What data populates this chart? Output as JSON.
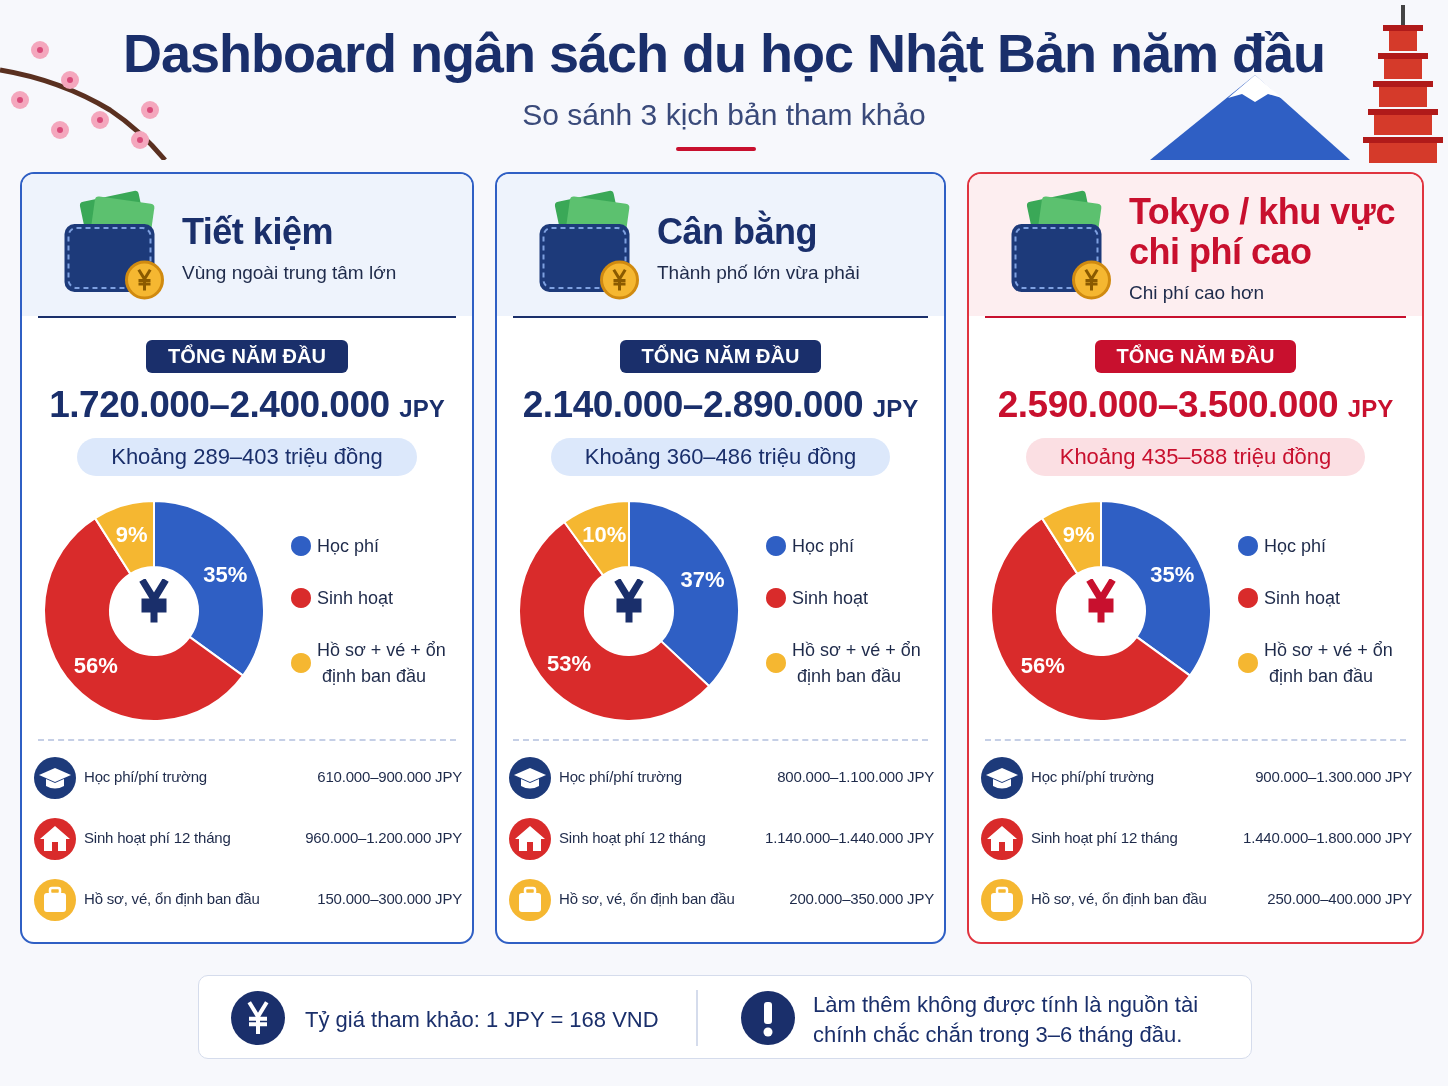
{
  "chart_data": [
    {
      "type": "other",
      "title": "Dashboard ngân sách du học Nhật Bản năm đầu",
      "subtitle": "So sánh 3 kịch bản tham khảo"
    },
    {
      "type": "donut",
      "title": "Tiết kiệm",
      "subtitle": "Vùng ngoài trung tâm lớn",
      "categories": [
        "Học phí",
        "Sinh hoạt",
        "Hồ sơ + vé + ổn định ban đầu"
      ],
      "values": [
        35,
        56,
        9
      ],
      "value_labels": [
        "35%",
        "56%",
        "9%"
      ],
      "colors": [
        "#2f5fc4",
        "#d92b2b",
        "#f5b731"
      ],
      "legend": "right",
      "annotations": [
        "TỔNG NĂM ĐẦU",
        "1.720.000–2.400.000 JPY",
        "Khoảng 289–403 triệu đồng",
        "Học phí/phí trường",
        "610.000–900.000 JPY",
        "Sinh hoạt phí 12 tháng",
        "960.000–1.200.000 JPY",
        "Hồ sơ, vé, ổn định ban đầu",
        "150.000–300.000 JPY"
      ]
    },
    {
      "type": "donut",
      "title": "Cân bằng",
      "subtitle": "Thành phố lớn vừa phải",
      "categories": [
        "Học phí",
        "Sinh hoạt",
        "Hồ sơ + vé + ổn định ban đầu"
      ],
      "values": [
        37,
        53,
        10
      ],
      "value_labels": [
        "37%",
        "53%",
        "10%"
      ],
      "colors": [
        "#2f5fc4",
        "#d92b2b",
        "#f5b731"
      ],
      "legend": "right",
      "annotations": [
        "TỔNG NĂM ĐẦU",
        "2.140.000–2.890.000 JPY",
        "Khoảng 360–486 triệu đồng",
        "Học phí/phí trường",
        "800.000–1.100.000 JPY",
        "Sinh hoạt phí 12 tháng",
        "1.140.000–1.440.000 JPY",
        "Hồ sơ, vé, ổn định ban đầu",
        "200.000–350.000 JPY"
      ]
    },
    {
      "type": "donut",
      "title": "Tokyo / khu vực chi phí cao",
      "subtitle": "Chi phí cao hơn",
      "categories": [
        "Học phí",
        "Sinh hoạt",
        "Hồ sơ + vé + ổn định ban đầu"
      ],
      "values": [
        35,
        56,
        9
      ],
      "value_labels": [
        "35%",
        "56%",
        "9%"
      ],
      "colors": [
        "#2f5fc4",
        "#d92b2b",
        "#f5b731"
      ],
      "legend": "right",
      "annotations": [
        "TỔNG NĂM ĐẦU",
        "2.590.000–3.500.000 JPY",
        "Khoảng 435–588 triệu đồng",
        "Học phí/phí trường",
        "900.000–1.300.000 JPY",
        "Sinh hoạt phí 12 tháng",
        "1.440.000–1.800.000 JPY",
        "Hồ sơ, vé, ổn định ban đầu",
        "250.000–400.000 JPY"
      ]
    },
    {
      "type": "other",
      "annotations": [
        "Tỷ giá tham khảo:  1 JPY = 168 VND",
        "Làm thêm không được tính là nguồn tài chính chắc chắn trong 3–6 tháng đầu."
      ]
    }
  ]
}
